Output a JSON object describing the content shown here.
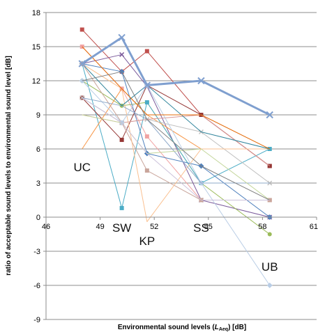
{
  "chart_data": {
    "type": "line",
    "title": "",
    "xlabel": "Environmental sound levels (",
    "xlabel_var": "L",
    "xlabel_sub": "Aeq",
    "xlabel_tail": ") [dB]",
    "ylabel": "ratio of acceptable sound levels to environmental sound level [dB]",
    "xlim": [
      46,
      61
    ],
    "ylim": [
      -9,
      18
    ],
    "x_ticks": [
      "46",
      "49",
      "52",
      "55",
      "58",
      "61"
    ],
    "y_ticks": [
      "-9",
      "-6",
      "-3",
      "0",
      "3",
      "6",
      "9",
      "12",
      "15",
      "18"
    ],
    "grid": "horizontal",
    "legend": "none",
    "site_labels": [
      {
        "name": "UC",
        "x": 48.0
      },
      {
        "name": "SW",
        "x": 50.2
      },
      {
        "name": "KP",
        "x": 51.6
      },
      {
        "name": "SS",
        "x": 54.6
      },
      {
        "name": "UB",
        "x": 58.4
      }
    ],
    "x": [
      48.0,
      50.2,
      51.6,
      54.6,
      58.4
    ],
    "series": [
      {
        "color": "#7f9fcf",
        "marker": "x",
        "bold": true,
        "values": [
          13.5,
          15.8,
          11.6,
          12.0,
          9.0
        ]
      },
      {
        "color": "#c0504d",
        "marker": "square",
        "values": [
          16.5,
          12.8,
          14.6,
          9.0,
          4.5
        ]
      },
      {
        "color": "#7b5a9b",
        "marker": "x",
        "values": [
          13.5,
          14.3,
          11.5,
          1.5,
          0.0
        ]
      },
      {
        "color": "#f1a3a3",
        "marker": "square",
        "values": [
          15.0,
          11.3,
          7.1,
          1.5,
          1.5
        ]
      },
      {
        "color": "#9bbb59",
        "marker": "circle",
        "values": [
          12.0,
          9.8,
          10.1,
          3.0,
          -1.5
        ]
      },
      {
        "color": "#4bacc6",
        "marker": "square",
        "values": [
          13.5,
          0.8,
          10.1,
          3.0,
          6.0
        ]
      },
      {
        "color": "#f79646",
        "marker": "none",
        "values": [
          6.0,
          11.3,
          9.0,
          6.0,
          6.0
        ]
      },
      {
        "color": "#953735",
        "marker": "square",
        "values": [
          10.5,
          6.8,
          11.6,
          9.0,
          4.5
        ]
      },
      {
        "color": "#4f81bd",
        "marker": "diamond",
        "values": [
          13.5,
          12.8,
          5.6,
          4.5,
          0.0
        ]
      },
      {
        "color": "#bfbfbf",
        "marker": "x",
        "values": [
          10.5,
          8.3,
          8.6,
          7.5,
          3.0
        ]
      },
      {
        "color": "#c9a59b",
        "marker": "square",
        "values": [
          13.5,
          8.3,
          4.1,
          1.5,
          1.5
        ]
      },
      {
        "color": "#d99694",
        "marker": "none",
        "values": [
          9.0,
          8.3,
          8.6,
          9.0,
          4.5
        ]
      },
      {
        "color": "#fac090",
        "marker": "none",
        "values": [
          13.5,
          11.3,
          -0.4,
          6.0,
          6.0
        ]
      },
      {
        "color": "#b9cde5",
        "marker": "diamond",
        "values": [
          12.0,
          8.3,
          11.6,
          3.0,
          -6.0
        ]
      },
      {
        "color": "#8ea9c9",
        "marker": "none",
        "values": [
          10.5,
          9.8,
          8.6,
          3.0,
          3.0
        ]
      },
      {
        "color": "#c3d69b",
        "marker": "none",
        "values": [
          9.0,
          8.3,
          5.6,
          6.0,
          1.5
        ]
      },
      {
        "color": "#31859c",
        "marker": "none",
        "values": [
          13.5,
          9.8,
          11.6,
          7.5,
          6.0
        ]
      },
      {
        "color": "#e46c0a",
        "marker": "none",
        "values": [
          15.0,
          11.3,
          9.0,
          9.0,
          6.0
        ]
      },
      {
        "color": "#7f7f7f",
        "marker": "none",
        "values": [
          12.0,
          12.8,
          8.6,
          4.5,
          1.5
        ]
      },
      {
        "color": "#ccc1da",
        "marker": "none",
        "values": [
          10.5,
          8.3,
          5.6,
          1.5,
          1.5
        ]
      }
    ]
  }
}
